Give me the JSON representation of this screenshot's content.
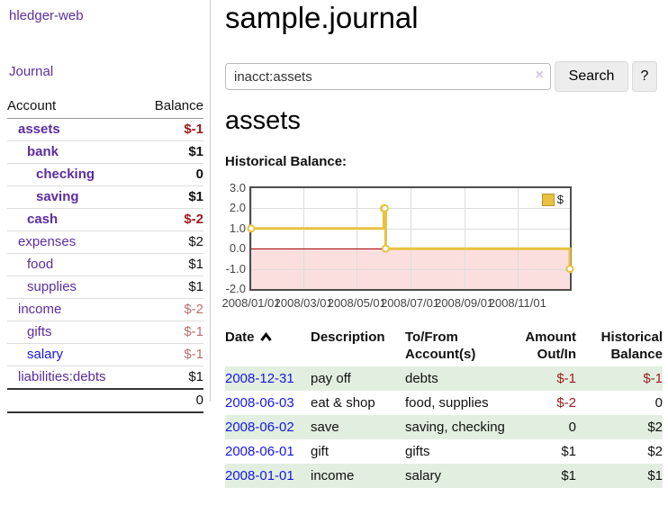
{
  "app": {
    "title": "hledger-web"
  },
  "sidebar": {
    "journal_label": "Journal",
    "accounts_table": {
      "headers": [
        "Account",
        "Balance"
      ],
      "rows": [
        {
          "name": "assets",
          "balance": "$-1",
          "depth": 0,
          "bold": true,
          "neg": "strong"
        },
        {
          "name": "bank",
          "balance": "$1",
          "depth": 1,
          "bold": true
        },
        {
          "name": "checking",
          "balance": "0",
          "depth": 2,
          "bold": true
        },
        {
          "name": "saving",
          "balance": "$1",
          "depth": 2,
          "bold": true
        },
        {
          "name": "cash",
          "balance": "$-2",
          "depth": 1,
          "bold": true,
          "neg": "strong"
        },
        {
          "name": "expenses",
          "balance": "$2",
          "depth": 0
        },
        {
          "name": "food",
          "balance": "$1",
          "depth": 1
        },
        {
          "name": "supplies",
          "balance": "$1",
          "depth": 1
        },
        {
          "name": "income",
          "balance": "$-2",
          "depth": 0,
          "neg": "dim"
        },
        {
          "name": "gifts",
          "balance": "$-1",
          "depth": 1,
          "neg": "dim"
        },
        {
          "name": "salary",
          "balance": "$-1",
          "depth": 1,
          "neg": "dim",
          "unvisited": true
        },
        {
          "name": "liabilities:debts",
          "balance": "$1",
          "depth": 0
        }
      ],
      "total": "0"
    }
  },
  "main": {
    "title": "sample.journal",
    "search": {
      "value": "inacct:assets",
      "clear_icon": "×",
      "button_label": "Search",
      "help_label": "?"
    },
    "account_heading": "assets"
  },
  "chart_data": {
    "type": "line",
    "style": "step",
    "title": "Historical Balance:",
    "series": [
      {
        "name": "$",
        "color": "#e8c240",
        "points": [
          {
            "date": "2008-01-01",
            "value": 1
          },
          {
            "date": "2008-06-01",
            "value": 2
          },
          {
            "date": "2008-06-02",
            "value": 2
          },
          {
            "date": "2008-06-03",
            "value": 0
          },
          {
            "date": "2008-12-31",
            "value": -1
          }
        ]
      }
    ],
    "x_range": [
      "2008-01-01",
      "2008-12-31"
    ],
    "x_ticks": [
      "2008/01/01",
      "2008/03/01",
      "2008/05/01",
      "2008/07/01",
      "2008/09/01",
      "2008/11/01"
    ],
    "y_ticks": [
      3.0,
      2.0,
      1.0,
      0.0,
      -1.0,
      -2.0
    ],
    "ylim": [
      -2,
      3
    ],
    "grid": true,
    "negative_region_fill": "#fbdfdf",
    "zero_line_color": "#a40000",
    "legend": {
      "label": "$",
      "swatch_color": "#e8c240",
      "position": "top-right"
    }
  },
  "register_table": {
    "headers": [
      "Date",
      "Description",
      "To/From Account(s)",
      "Amount Out/In",
      "Historical Balance"
    ],
    "sort": {
      "column": "Date",
      "direction": "ascending"
    },
    "rows": [
      {
        "date": "2008-12-31",
        "description": "pay off",
        "accounts": "debts",
        "amount": "$-1",
        "balance": "$-1"
      },
      {
        "date": "2008-06-03",
        "description": "eat & shop",
        "accounts": "food, supplies",
        "amount": "$-2",
        "balance": "0"
      },
      {
        "date": "2008-06-02",
        "description": "save",
        "accounts": "saving, checking",
        "amount": "0",
        "balance": "$2"
      },
      {
        "date": "2008-06-01",
        "description": "gift",
        "accounts": "gifts",
        "amount": "$1",
        "balance": "$2"
      },
      {
        "date": "2008-01-01",
        "description": "income",
        "accounts": "salary",
        "amount": "$1",
        "balance": "$1"
      }
    ]
  }
}
